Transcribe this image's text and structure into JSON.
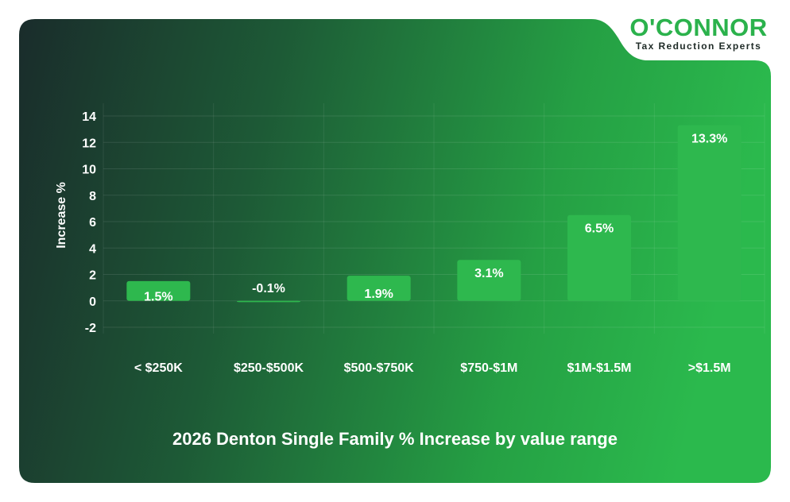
{
  "brand": {
    "name": "O'CONNOR",
    "tagline": "Tax Reduction Experts",
    "name_color": "#2bb24c"
  },
  "colors": {
    "panel_dark": "#1b2f2c",
    "panel_green": "#2bb24c",
    "bar": "#2eb84e",
    "text": "#ffffff"
  },
  "chart_data": {
    "type": "bar",
    "title": "2026 Denton Single Family % Increase by value range",
    "ylabel": "Increase %",
    "xlabel": "",
    "categories": [
      "< $250K",
      "$250-$500K",
      "$500-$750K",
      "$750-$1M",
      "$1M-$1.5M",
      ">$1.5M"
    ],
    "values": [
      1.5,
      -0.1,
      1.9,
      3.1,
      6.5,
      13.3
    ],
    "data_labels": [
      "1.5%",
      "-0.1%",
      "1.9%",
      "3.1%",
      "6.5%",
      "13.3%"
    ],
    "ylim": [
      -2,
      14
    ],
    "yticks": [
      -2,
      0,
      2,
      4,
      6,
      8,
      10,
      12,
      14
    ],
    "grid": true,
    "legend": "none"
  }
}
